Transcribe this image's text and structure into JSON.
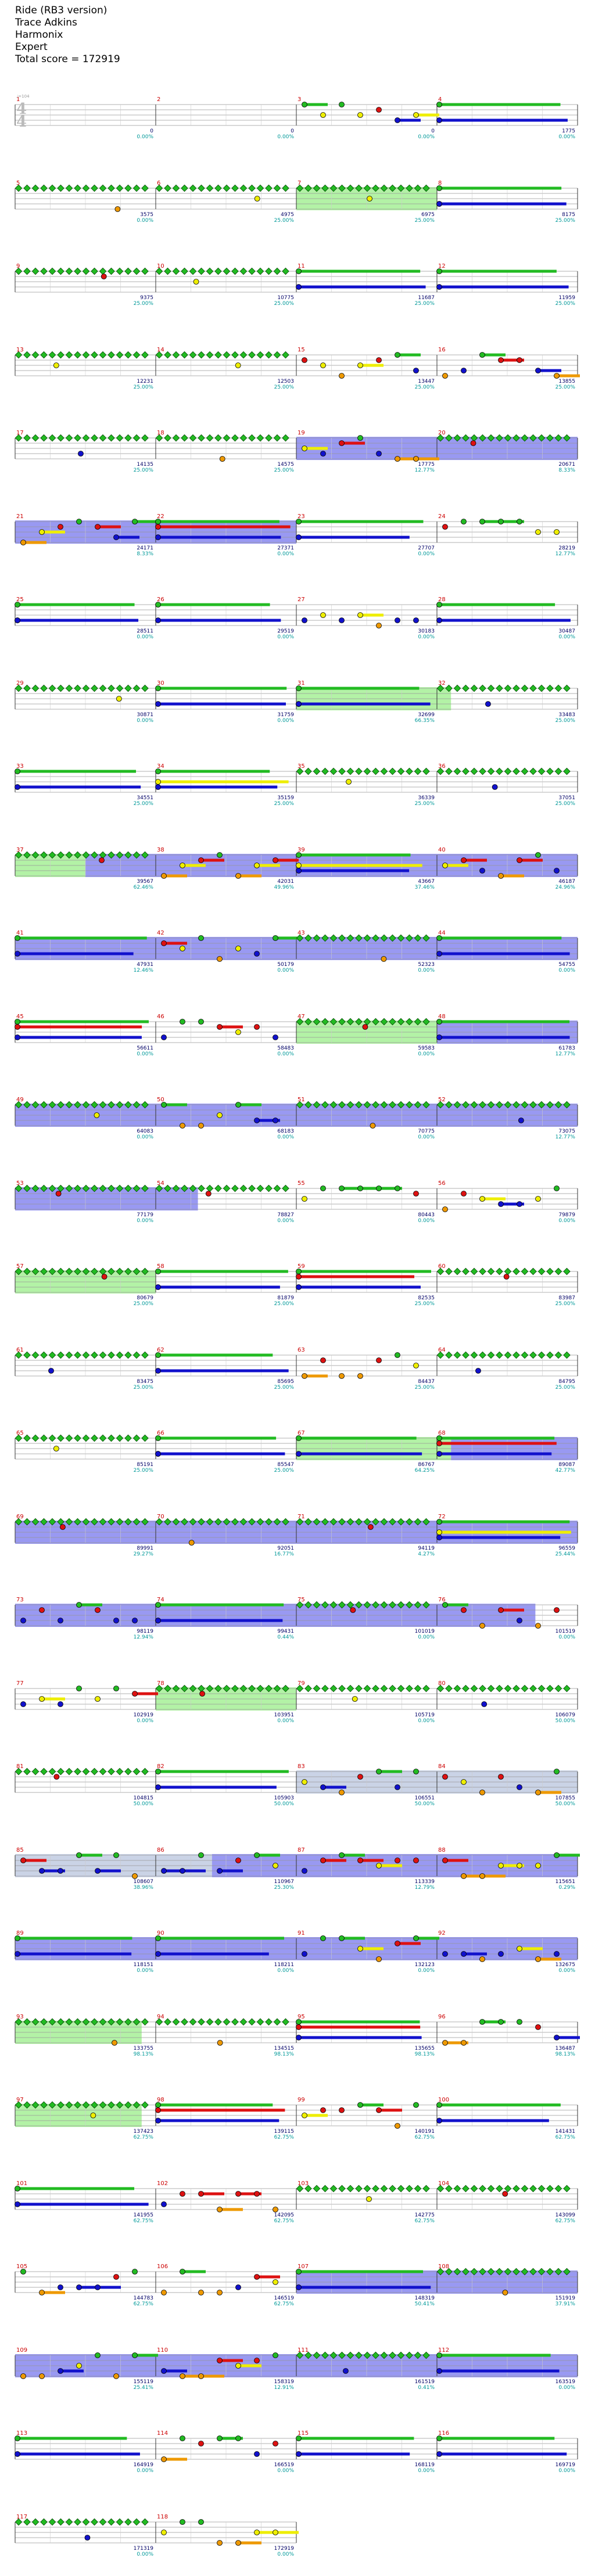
{
  "header": {
    "title": "Ride (RB3 version)",
    "artist": "Trace Adkins",
    "developer": "Harmonix",
    "difficulty": "Expert",
    "total_score": "Total score = 172919"
  },
  "time_signature": {
    "numerator": "4",
    "denominator": "4"
  },
  "tempo_label": "♩=104",
  "colors": {
    "green": "#22bb22",
    "red": "#dd1111",
    "yellow": "#eeee00",
    "blue": "#1111cc",
    "orange": "#ee9900",
    "overdrive": "#7777ee",
    "solo": "#99ee88",
    "lane_guide": "#999999"
  },
  "rows": [
    {
      "m": [
        1,
        2,
        3,
        4
      ],
      "scores": [
        "0",
        "0",
        "0",
        "1775"
      ],
      "pcts": [
        "0.00%",
        "0.00%",
        "0.00%",
        "0.00%"
      ]
    },
    {
      "m": [
        5,
        6,
        7,
        8
      ],
      "scores": [
        "3575",
        "4975",
        "6975",
        "8175"
      ],
      "pcts": [
        "0.00%",
        "25.00%",
        "25.00%",
        "25.00%"
      ]
    },
    {
      "m": [
        9,
        10,
        11,
        12
      ],
      "scores": [
        "9375",
        "10775",
        "11687",
        "11959"
      ],
      "pcts": [
        "25.00%",
        "25.00%",
        "25.00%",
        "25.00%"
      ]
    },
    {
      "m": [
        13,
        14,
        15,
        16
      ],
      "scores": [
        "12231",
        "12503",
        "13447",
        "13855"
      ],
      "pcts": [
        "25.00%",
        "25.00%",
        "25.00%",
        "25.00%"
      ]
    },
    {
      "m": [
        17,
        18,
        19,
        20
      ],
      "scores": [
        "14135",
        "14575",
        "17775",
        "20671"
      ],
      "pcts": [
        "25.00%",
        "25.00%",
        "12.77%",
        "8.33%"
      ]
    },
    {
      "m": [
        21,
        22,
        23,
        24
      ],
      "scores": [
        "24171",
        "27371",
        "27707",
        "28219"
      ],
      "pcts": [
        "8.33%",
        "0.00%",
        "0.00%",
        "12.77%"
      ]
    },
    {
      "m": [
        25,
        26,
        27,
        28
      ],
      "scores": [
        "28511",
        "29519",
        "30183",
        "30487"
      ],
      "pcts": [
        "0.00%",
        "0.00%",
        "0.00%",
        "0.00%"
      ]
    },
    {
      "m": [
        29,
        30,
        31,
        32
      ],
      "scores": [
        "30871",
        "31759",
        "32699",
        "33483"
      ],
      "pcts": [
        "0.00%",
        "0.00%",
        "66.35%",
        "25.00%"
      ]
    },
    {
      "m": [
        33,
        34,
        35,
        36
      ],
      "scores": [
        "34551",
        "35159",
        "36339",
        "37051"
      ],
      "pcts": [
        "25.00%",
        "25.00%",
        "25.00%",
        "25.00%"
      ]
    },
    {
      "m": [
        37,
        38,
        39,
        40
      ],
      "scores": [
        "39567",
        "42031",
        "43667",
        "46187"
      ],
      "pcts": [
        "62.46%",
        "49.96%",
        "37.46%",
        "24.96%"
      ]
    },
    {
      "m": [
        41,
        42,
        43,
        44
      ],
      "scores": [
        "47931",
        "50179",
        "52323",
        "54755"
      ],
      "pcts": [
        "12.46%",
        "0.00%",
        "0.00%",
        "0.00%"
      ]
    },
    {
      "m": [
        45,
        46,
        47,
        48
      ],
      "scores": [
        "56611",
        "58483",
        "59583",
        "61783"
      ],
      "pcts": [
        "0.00%",
        "0.00%",
        "0.00%",
        "12.77%"
      ]
    },
    {
      "m": [
        49,
        50,
        51,
        52
      ],
      "scores": [
        "64083",
        "68183",
        "70775",
        "73075"
      ],
      "pcts": [
        "0.00%",
        "0.00%",
        "0.00%",
        "12.77%"
      ]
    },
    {
      "m": [
        53,
        54,
        55,
        56
      ],
      "scores": [
        "77179",
        "78827",
        "80443",
        "79879"
      ],
      "pcts": [
        "0.00%",
        "0.00%",
        "0.00%",
        "0.00%"
      ]
    },
    {
      "m": [
        57,
        58,
        59,
        60
      ],
      "scores": [
        "80679",
        "81879",
        "82535",
        "83987"
      ],
      "pcts": [
        "25.00%",
        "25.00%",
        "25.00%",
        "25.00%"
      ]
    },
    {
      "m": [
        61,
        62,
        63,
        64
      ],
      "scores": [
        "83475",
        "85695",
        "84437",
        "84795"
      ],
      "pcts": [
        "25.00%",
        "25.00%",
        "25.00%",
        "25.00%"
      ]
    },
    {
      "m": [
        65,
        66,
        67,
        68
      ],
      "scores": [
        "85191",
        "85547",
        "86767",
        "89087"
      ],
      "pcts": [
        "25.00%",
        "25.00%",
        "64.25%",
        "42.77%"
      ]
    },
    {
      "m": [
        69,
        70,
        71,
        72
      ],
      "scores": [
        "89991",
        "92051",
        "94119",
        "96559"
      ],
      "pcts": [
        "29.27%",
        "16.77%",
        "4.27%",
        "25.44%"
      ]
    },
    {
      "m": [
        73,
        74,
        75,
        76
      ],
      "scores": [
        "98119",
        "99431",
        "101019",
        "101519"
      ],
      "pcts": [
        "12.94%",
        "0.44%",
        "0.00%",
        "0.00%"
      ]
    },
    {
      "m": [
        77,
        78,
        79,
        80
      ],
      "scores": [
        "102919",
        "103951",
        "105719",
        "106079"
      ],
      "pcts": [
        "0.00%",
        "0.00%",
        "0.00%",
        "50.00%"
      ]
    },
    {
      "m": [
        81,
        82,
        83,
        84
      ],
      "scores": [
        "104815",
        "105903",
        "106551",
        "107855"
      ],
      "pcts": [
        "50.00%",
        "50.00%",
        "50.00%",
        "50.00%"
      ]
    },
    {
      "m": [
        85,
        86,
        87,
        88
      ],
      "scores": [
        "108607",
        "110967",
        "113339",
        "115651"
      ],
      "pcts": [
        "38.96%",
        "25.30%",
        "12.79%",
        "0.29%"
      ]
    },
    {
      "m": [
        89,
        90,
        91,
        92
      ],
      "scores": [
        "118151",
        "118211",
        "132123",
        "132675"
      ],
      "pcts": [
        "0.00%",
        "0.00%",
        "0.00%",
        "0.00%"
      ]
    },
    {
      "m": [
        93,
        94,
        95,
        96
      ],
      "scores": [
        "133755",
        "134515",
        "135655",
        "136487"
      ],
      "pcts": [
        "98.13%",
        "98.13%",
        "98.13%",
        "98.13%"
      ]
    },
    {
      "m": [
        97,
        98,
        99,
        100
      ],
      "scores": [
        "137423",
        "139115",
        "140191",
        "141431"
      ],
      "pcts": [
        "62.75%",
        "62.75%",
        "62.75%",
        "62.75%"
      ]
    },
    {
      "m": [
        101,
        102,
        103,
        104
      ],
      "scores": [
        "141955",
        "142095",
        "142775",
        "143099"
      ],
      "pcts": [
        "62.75%",
        "62.75%",
        "62.75%",
        "62.75%"
      ]
    },
    {
      "m": [
        105,
        106,
        107,
        108
      ],
      "scores": [
        "144783",
        "146519",
        "148319",
        "151919"
      ],
      "pcts": [
        "62.75%",
        "62.75%",
        "50.41%",
        "37.91%"
      ]
    },
    {
      "m": [
        109,
        110,
        111,
        112
      ],
      "scores": [
        "155119",
        "158319",
        "161519",
        "163519"
      ],
      "pcts": [
        "25.41%",
        "12.91%",
        "0.41%",
        "0.00%"
      ]
    },
    {
      "m": [
        113,
        114,
        115,
        116
      ],
      "scores": [
        "164919",
        "166519",
        "168119",
        "169719"
      ],
      "pcts": [
        "0.00%",
        "0.00%",
        "0.00%",
        "0.00%"
      ]
    },
    {
      "m": [
        117,
        118
      ],
      "scores": [
        "171319",
        "172919"
      ],
      "pcts": [
        "0.00%",
        "0.00%"
      ]
    }
  ]
}
